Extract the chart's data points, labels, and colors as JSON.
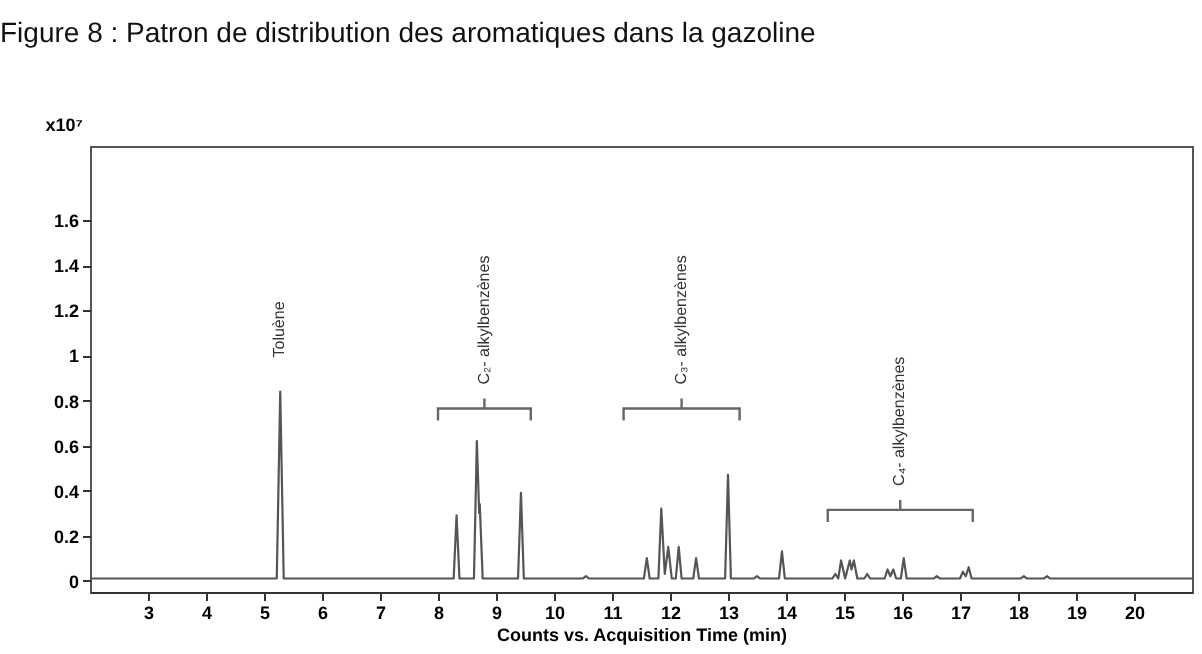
{
  "chart_data": {
    "type": "line",
    "title": "Figure 8 : Patron de distribution des aromatiques dans la gazoline",
    "xlabel": "Counts vs. Acquisition Time (min)",
    "ylabel": "x10⁷",
    "annotations": [
      "Toluène",
      "C₂- alkylbenzènes",
      "C₃- alkylbenzènes",
      "C₄- alkylbenzènes"
    ],
    "x": [
      2.0,
      5.22,
      5.28,
      5.34,
      8.27,
      8.32,
      8.37,
      8.62,
      8.67,
      8.71,
      8.72,
      8.77,
      9.38,
      9.43,
      9.48,
      10.5,
      10.55,
      10.6,
      11.55,
      11.6,
      11.65,
      11.8,
      11.85,
      11.91,
      11.97,
      12.03,
      12.1,
      12.15,
      12.2,
      12.4,
      12.45,
      12.5,
      12.95,
      13.0,
      13.05,
      13.45,
      13.5,
      13.55,
      13.88,
      13.93,
      13.98,
      14.8,
      14.85,
      14.9,
      14.95,
      15.02,
      15.1,
      15.13,
      15.17,
      15.23,
      15.35,
      15.4,
      15.45,
      15.7,
      15.75,
      15.8,
      15.85,
      15.9,
      15.98,
      16.03,
      16.08,
      16.55,
      16.6,
      16.65,
      17.0,
      17.05,
      17.1,
      17.15,
      17.2,
      18.05,
      18.1,
      18.15,
      18.45,
      18.5,
      18.55,
      21.0
    ],
    "values": [
      0.01,
      0.01,
      0.84,
      0.01,
      0.01,
      0.29,
      0.01,
      0.01,
      0.62,
      0.3,
      0.34,
      0.01,
      0.01,
      0.39,
      0.01,
      0.01,
      0.02,
      0.01,
      0.01,
      0.1,
      0.01,
      0.01,
      0.32,
      0.03,
      0.15,
      0.01,
      0.01,
      0.15,
      0.01,
      0.01,
      0.1,
      0.01,
      0.01,
      0.47,
      0.01,
      0.01,
      0.02,
      0.01,
      0.01,
      0.13,
      0.01,
      0.01,
      0.03,
      0.01,
      0.09,
      0.01,
      0.09,
      0.05,
      0.09,
      0.01,
      0.01,
      0.03,
      0.01,
      0.01,
      0.05,
      0.02,
      0.05,
      0.01,
      0.01,
      0.1,
      0.01,
      0.01,
      0.02,
      0.01,
      0.01,
      0.04,
      0.02,
      0.06,
      0.01,
      0.01,
      0.02,
      0.01,
      0.01,
      0.02,
      0.01,
      0.01
    ],
    "color": "#555555",
    "xlim": [
      2,
      21
    ],
    "xticks": [
      3,
      4,
      5,
      6,
      7,
      8,
      9,
      10,
      11,
      12,
      13,
      14,
      15,
      16,
      17,
      18,
      19,
      20
    ],
    "ylim": [
      -0.05,
      1.93
    ],
    "yticks": [
      0,
      0.2,
      0.4,
      0.6,
      0.8,
      1,
      1.2,
      1.4,
      1.6
    ],
    "grid": false
  }
}
